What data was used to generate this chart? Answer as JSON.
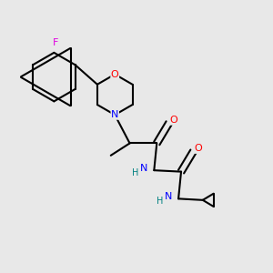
{
  "background_color": "#e8e8e8",
  "bond_color": "#000000",
  "atom_colors": {
    "F": "#e000e0",
    "O": "#ff0000",
    "N": "#0000ff",
    "H": "#008080",
    "C": "#000000"
  }
}
